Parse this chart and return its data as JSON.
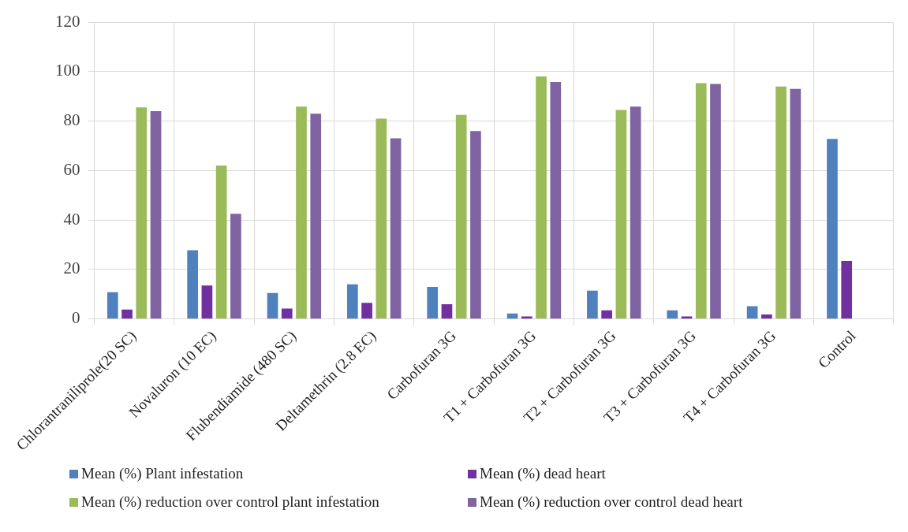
{
  "chart_data": {
    "type": "bar",
    "categories": [
      "Chlorantraniliprole(20 SC)",
      "Novaluron (10 EC)",
      "Flubendiamide (480 SC)",
      "Deltamethrin (2.8 EC)",
      "Carbofuran 3G",
      "T1 + Carbofuran 3G",
      "T2 + Carbofuran 3G",
      "T3 + Carbofuran 3G",
      "T4 + Carbofuran 3G",
      "Control"
    ],
    "series": [
      {
        "name": "Mean (%) Plant infestation",
        "color": "#4f81bd",
        "values": [
          10.8,
          27.8,
          10.5,
          14,
          13,
          2.2,
          11.5,
          3.5,
          5.2,
          72.8
        ]
      },
      {
        "name": "Mean (%) dead heart",
        "color": "#7030a0",
        "values": [
          3.8,
          13.5,
          4.2,
          6.5,
          6,
          1,
          3.5,
          1,
          1.8,
          23.5
        ]
      },
      {
        "name": "Mean (%) reduction over control plant infestation",
        "color": "#9bbb59",
        "values": [
          85.5,
          62,
          85.8,
          81,
          82.5,
          98,
          84.5,
          95.3,
          94,
          null
        ]
      },
      {
        "name": "Mean (%) reduction over control dead heart",
        "color": "#8064a2",
        "values": [
          84,
          42.5,
          83,
          73,
          76,
          95.8,
          85.8,
          95,
          93,
          null
        ]
      }
    ],
    "ylim": [
      0,
      120
    ],
    "yticks": [
      0,
      20,
      40,
      60,
      80,
      100,
      120
    ],
    "grid": true,
    "legend": "bottom"
  }
}
